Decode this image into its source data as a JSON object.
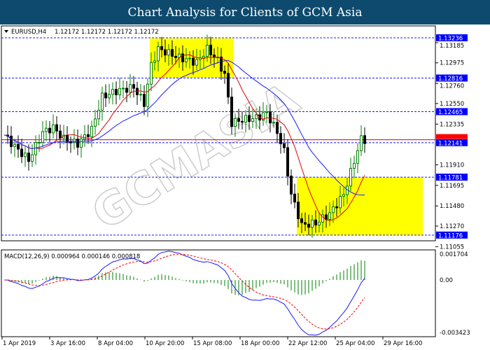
{
  "header": {
    "title": "Chart Analysis for Clients of GCM Asia"
  },
  "watermark": "GCMASIA",
  "chart_data": [
    {
      "type": "candlestick",
      "symbol_label": "EURUSD,H4",
      "ohlc_label": "1.12172 1.12172 1.12172 1.12172",
      "y_ticks": [
        "1.13185",
        "1.12975",
        "1.12760",
        "1.12550",
        "1.12335",
        "1.11910",
        "1.11695",
        "1.11480",
        "1.11270",
        "1.11055"
      ],
      "ylim": [
        1.11055,
        1.13185
      ],
      "levels": [
        {
          "value": 1.13236,
          "label": "1.13236"
        },
        {
          "value": 1.12816,
          "label": "1.12816"
        },
        {
          "value": 1.12465,
          "label": "1.12465"
        },
        {
          "value": 1.12141,
          "label": "1.12141"
        },
        {
          "value": 1.11781,
          "label": "1.11781"
        },
        {
          "value": 1.11176,
          "label": "1.11176"
        }
      ],
      "current_price": {
        "value": 1.12172,
        "label": "1.12172"
      },
      "highlight_zones": [
        {
          "from_bar": 42,
          "to_bar": 66,
          "low": 1.1282,
          "high": 1.1323
        },
        {
          "from_bar": 84,
          "to_bar": 120,
          "low": 1.11176,
          "high": 1.11781
        }
      ],
      "close_anchors": [
        [
          0,
          1.1222
        ],
        [
          3,
          1.121
        ],
        [
          7,
          1.1196
        ],
        [
          11,
          1.1225
        ],
        [
          14,
          1.123
        ],
        [
          17,
          1.1218
        ],
        [
          21,
          1.1213
        ],
        [
          25,
          1.1228
        ],
        [
          28,
          1.1262
        ],
        [
          32,
          1.1268
        ],
        [
          37,
          1.1272
        ],
        [
          40,
          1.1255
        ],
        [
          42,
          1.1295
        ],
        [
          44,
          1.1312
        ],
        [
          50,
          1.1303
        ],
        [
          55,
          1.1298
        ],
        [
          58,
          1.1312
        ],
        [
          61,
          1.13
        ],
        [
          63,
          1.1285
        ],
        [
          65,
          1.1235
        ],
        [
          68,
          1.1238
        ],
        [
          72,
          1.124
        ],
        [
          75,
          1.1245
        ],
        [
          78,
          1.1225
        ],
        [
          80,
          1.1205
        ],
        [
          82,
          1.116
        ],
        [
          85,
          1.1128
        ],
        [
          89,
          1.113
        ],
        [
          93,
          1.114
        ],
        [
          97,
          1.116
        ],
        [
          100,
          1.1195
        ],
        [
          102,
          1.1218
        ],
        [
          103,
          1.1217
        ]
      ],
      "colors": {
        "bull": "#008000",
        "bear": "#000000",
        "ma_fast": "#e00000",
        "ma_slow": "#1a1aff",
        "level": "#1a1aff",
        "zone": "#ffff00"
      }
    },
    {
      "type": "macd",
      "label": "MACD(12,26,9) 0.000964 0.000146 0.000818",
      "y_ticks": [
        "0.001704",
        "0.00",
        "-0.003423"
      ],
      "ylim": [
        -0.003423,
        0.001704
      ],
      "x_ticks": [
        "1 Apr 2019",
        "3 Apr 16:00",
        "8 Apr 04:00",
        "10 Apr 20:00",
        "15 Apr 08:00",
        "18 Apr 00:00",
        "22 Apr 12:00",
        "25 Apr 04:00",
        "29 Apr 16:00"
      ],
      "colors": {
        "histogram": "#008000",
        "main": "#1a1aff",
        "signal": "#ff0000"
      }
    }
  ]
}
